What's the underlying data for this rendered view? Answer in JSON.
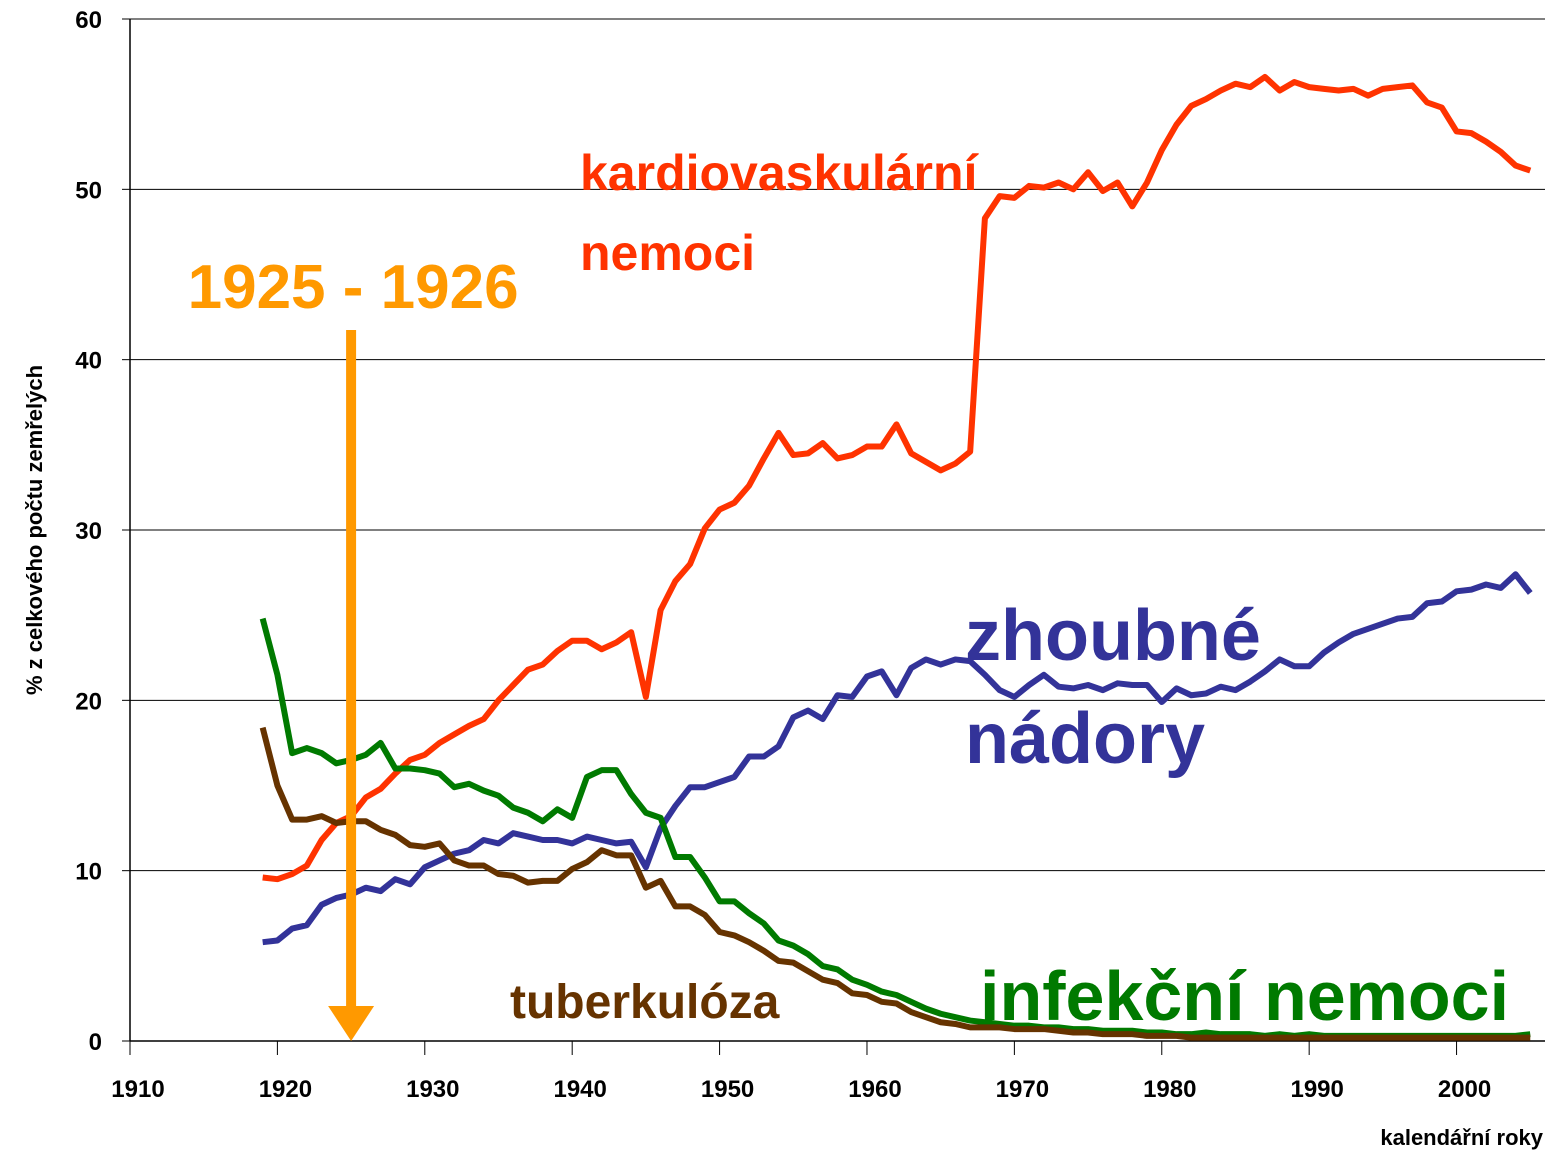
{
  "chart_data": {
    "type": "line",
    "y_label": "% z celkového počtu zemřelých",
    "x_label": "kalendářní roky",
    "xlim": [
      1910,
      2006
    ],
    "xticks": [
      1910,
      1920,
      1930,
      1940,
      1950,
      1960,
      1970,
      1980,
      1990,
      2000
    ],
    "ylim": [
      0,
      60
    ],
    "yticks": [
      0,
      10,
      20,
      30,
      40,
      50,
      60
    ],
    "grid": true,
    "x": [
      1919,
      1920,
      1921,
      1922,
      1923,
      1924,
      1925,
      1926,
      1927,
      1928,
      1929,
      1930,
      1931,
      1932,
      1933,
      1934,
      1935,
      1936,
      1937,
      1938,
      1939,
      1940,
      1941,
      1942,
      1943,
      1944,
      1945,
      1946,
      1947,
      1948,
      1949,
      1950,
      1951,
      1952,
      1953,
      1954,
      1955,
      1956,
      1957,
      1958,
      1959,
      1960,
      1961,
      1962,
      1963,
      1964,
      1965,
      1966,
      1967,
      1968,
      1969,
      1970,
      1971,
      1972,
      1973,
      1974,
      1975,
      1976,
      1977,
      1978,
      1979,
      1980,
      1981,
      1982,
      1983,
      1984,
      1985,
      1986,
      1987,
      1988,
      1989,
      1990,
      1991,
      1992,
      1993,
      1994,
      1995,
      1996,
      1997,
      1998,
      1999,
      2000,
      2001,
      2002,
      2003,
      2004,
      2005
    ],
    "series": [
      {
        "label_lines": [
          "kardiovaskulární",
          "nemoci"
        ],
        "color": "#ff3300",
        "values": [
          9.6,
          9.5,
          9.8,
          10.3,
          11.8,
          12.8,
          13.2,
          14.3,
          14.8,
          15.7,
          16.5,
          16.8,
          17.5,
          18.0,
          18.5,
          18.9,
          20.0,
          20.9,
          21.8,
          22.1,
          22.9,
          23.5,
          23.5,
          23.0,
          23.4,
          24.0,
          20.2,
          25.3,
          27.0,
          28.0,
          30.1,
          31.2,
          31.6,
          32.6,
          34.2,
          35.7,
          34.4,
          34.5,
          35.1,
          34.2,
          34.4,
          34.9,
          34.9,
          36.2,
          34.5,
          34.0,
          33.5,
          33.9,
          34.6,
          48.3,
          49.6,
          49.5,
          50.2,
          50.1,
          50.4,
          50.0,
          51.0,
          49.9,
          50.4,
          49.0,
          50.4,
          52.3,
          53.8,
          54.9,
          55.3,
          55.8,
          56.2,
          56.0,
          56.6,
          55.8,
          56.3,
          56.0,
          55.9,
          55.8,
          55.9,
          55.5,
          55.9,
          56.0,
          56.1,
          55.1,
          54.8,
          53.4,
          53.3,
          52.8,
          52.2,
          51.4,
          51.1
        ]
      },
      {
        "label_lines": [
          "zhoubné",
          "nádory"
        ],
        "color": "#333399",
        "values": [
          5.8,
          5.9,
          6.6,
          6.8,
          8.0,
          8.4,
          8.6,
          9.0,
          8.8,
          9.5,
          9.2,
          10.2,
          10.6,
          11.0,
          11.2,
          11.8,
          11.6,
          12.2,
          12.0,
          11.8,
          11.8,
          11.6,
          12.0,
          11.8,
          11.6,
          11.7,
          10.2,
          12.5,
          13.8,
          14.9,
          14.9,
          15.2,
          15.5,
          16.7,
          16.7,
          17.3,
          19.0,
          19.4,
          18.9,
          20.3,
          20.2,
          21.4,
          21.7,
          20.3,
          21.9,
          22.4,
          22.1,
          22.4,
          22.3,
          21.5,
          20.6,
          20.2,
          20.9,
          21.5,
          20.8,
          20.7,
          20.9,
          20.6,
          21.0,
          20.9,
          20.9,
          19.9,
          20.7,
          20.3,
          20.4,
          20.8,
          20.6,
          21.1,
          21.7,
          22.4,
          22.0,
          22.0,
          22.8,
          23.4,
          23.9,
          24.2,
          24.5,
          24.8,
          24.9,
          25.7,
          25.8,
          26.4,
          26.5,
          26.8,
          26.6,
          27.4,
          26.3
        ]
      },
      {
        "label_lines": [
          "infekční nemoci"
        ],
        "color": "#007a00",
        "values": [
          24.8,
          21.5,
          16.9,
          17.2,
          16.9,
          16.3,
          16.5,
          16.8,
          17.5,
          16.0,
          16.0,
          15.9,
          15.7,
          14.9,
          15.1,
          14.7,
          14.4,
          13.7,
          13.4,
          12.9,
          13.6,
          13.1,
          15.5,
          15.9,
          15.9,
          14.5,
          13.4,
          13.1,
          10.8,
          10.8,
          9.6,
          8.2,
          8.2,
          7.5,
          6.9,
          5.9,
          5.6,
          5.1,
          4.4,
          4.2,
          3.6,
          3.3,
          2.9,
          2.7,
          2.3,
          1.9,
          1.6,
          1.4,
          1.2,
          1.1,
          1.0,
          0.9,
          0.9,
          0.8,
          0.8,
          0.7,
          0.7,
          0.6,
          0.6,
          0.6,
          0.5,
          0.5,
          0.4,
          0.4,
          0.5,
          0.4,
          0.4,
          0.4,
          0.3,
          0.4,
          0.3,
          0.4,
          0.3,
          0.3,
          0.3,
          0.3,
          0.3,
          0.3,
          0.3,
          0.3,
          0.3,
          0.3,
          0.3,
          0.3,
          0.3,
          0.3,
          0.4
        ]
      },
      {
        "label_lines": [
          "tuberkulóza"
        ],
        "color": "#663300",
        "values": [
          18.4,
          15.0,
          13.0,
          13.0,
          13.2,
          12.8,
          12.9,
          12.9,
          12.4,
          12.1,
          11.5,
          11.4,
          11.6,
          10.6,
          10.3,
          10.3,
          9.8,
          9.7,
          9.3,
          9.4,
          9.4,
          10.1,
          10.5,
          11.2,
          10.9,
          10.9,
          9.0,
          9.4,
          7.9,
          7.9,
          7.4,
          6.4,
          6.2,
          5.8,
          5.3,
          4.7,
          4.6,
          4.1,
          3.6,
          3.4,
          2.8,
          2.7,
          2.3,
          2.2,
          1.7,
          1.4,
          1.1,
          1.0,
          0.8,
          0.8,
          0.8,
          0.7,
          0.7,
          0.7,
          0.6,
          0.5,
          0.5,
          0.4,
          0.4,
          0.4,
          0.3,
          0.3,
          0.3,
          0.2,
          0.2,
          0.2,
          0.2,
          0.2,
          0.2,
          0.2,
          0.2,
          0.2,
          0.2,
          0.2,
          0.2,
          0.2,
          0.2,
          0.2,
          0.2,
          0.2,
          0.2,
          0.2,
          0.2,
          0.2,
          0.2,
          0.2,
          0.2
        ]
      }
    ],
    "arrow": {
      "text": "1925 - 1926",
      "x": 1925,
      "color": "#ff9900"
    }
  }
}
